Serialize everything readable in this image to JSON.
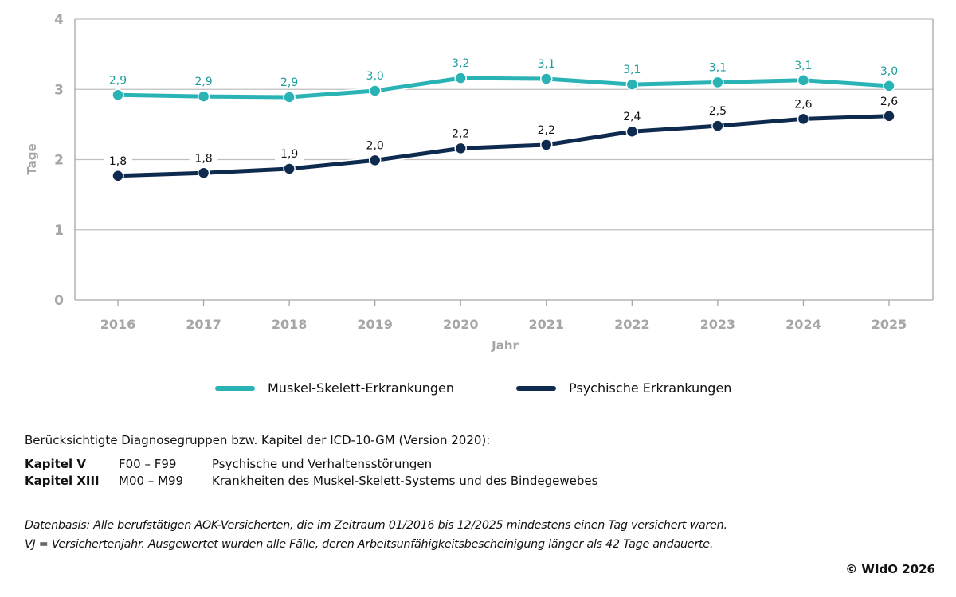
{
  "chart_data": {
    "type": "line",
    "title": "",
    "xlabel": "Jahr",
    "ylabel": "Tage",
    "x": [
      "2016",
      "2017",
      "2018",
      "2019",
      "2020",
      "2021",
      "2022",
      "2023",
      "2024",
      "2025"
    ],
    "ylim": [
      0,
      4
    ],
    "yticks": [
      "0",
      "1",
      "2",
      "3",
      "4"
    ],
    "grid": true,
    "legend_position": "bottom",
    "series": [
      {
        "name": "Muskel-Skelett-Erkrankungen",
        "color": "#2ab3b5",
        "label_color": "#1f9c9e",
        "values": [
          2.92,
          2.9,
          2.89,
          2.98,
          3.16,
          3.15,
          3.07,
          3.1,
          3.13,
          3.05
        ],
        "labels": [
          "2,9",
          "2,9",
          "2,9",
          "3,0",
          "3,2",
          "3,1",
          "3,1",
          "3,1",
          "3,1",
          "3,0"
        ]
      },
      {
        "name": "Psychische Erkrankungen",
        "color": "#0e2a4f",
        "label_color": "#111111",
        "values": [
          1.77,
          1.81,
          1.87,
          1.99,
          2.16,
          2.21,
          2.4,
          2.48,
          2.58,
          2.62
        ],
        "labels": [
          "1,8",
          "1,8",
          "1,9",
          "2,0",
          "2,2",
          "2,2",
          "2,4",
          "2,5",
          "2,6",
          "2,6"
        ]
      }
    ]
  },
  "notes": {
    "heading": "Berücksichtigte Diagnosegruppen bzw. Kapitel der ICD-10-GM (Version 2020):",
    "chapters": [
      {
        "kapitel": "Kapitel V",
        "codes": "F00 – F99",
        "description": "Psychische und Verhaltensstörungen"
      },
      {
        "kapitel": "Kapitel XIII",
        "codes": "M00 – M99",
        "description": "Krankheiten des Muskel-Skelett-Systems und des Bindegewebes"
      }
    ]
  },
  "footnote": {
    "line1": "Datenbasis: Alle berufstätigen AOK-Versicherten, die im Zeitraum 01/2016 bis 12/2025 mindestens einen Tag versichert waren.",
    "line2": "VJ = Versichertenjahr. Ausgewertet wurden alle Fälle, deren Arbeitsunfähigkeitsbescheinigung länger als 42 Tage andauerte."
  },
  "copyright": "© WIdO 2026"
}
